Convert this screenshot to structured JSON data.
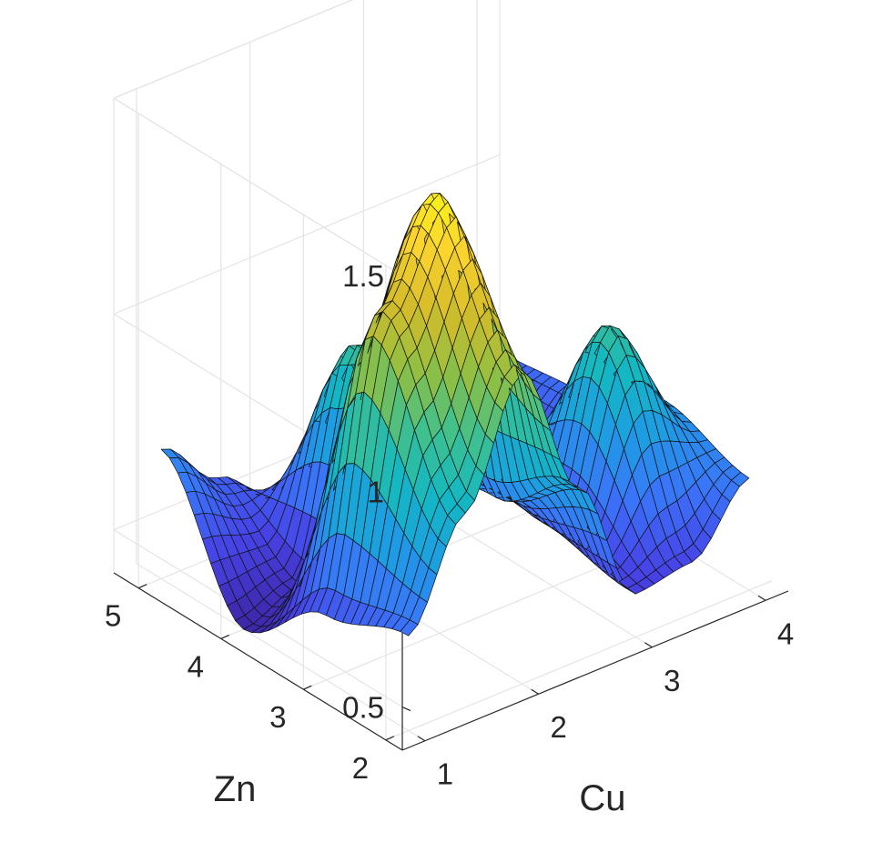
{
  "chart_data": {
    "type": "surface",
    "title": "",
    "xlabel": "Cu",
    "ylabel": "Zn",
    "zlabel": "",
    "xlim": [
      0.8,
      4.2
    ],
    "ylim": [
      1.8,
      5.3
    ],
    "zlim": [
      0.4,
      1.5
    ],
    "x_ticks": [
      "1",
      "2",
      "3",
      "4"
    ],
    "y_ticks": [
      "2",
      "3",
      "4",
      "5"
    ],
    "z_ticks": [
      "0.5",
      "1",
      "1.5"
    ],
    "grid": true,
    "colormap": [
      "#3e26a8",
      "#4743e6",
      "#3a74f9",
      "#1e9ce4",
      "#13b7c3",
      "#3ec08f",
      "#8fbf43",
      "#d5bc2a",
      "#fcd42e",
      "#f9fb15"
    ],
    "grid_rows_y": [
      2.0,
      3.0,
      4.0,
      5.0
    ],
    "grid_cols_x": [
      1.0,
      1.5,
      2.0,
      2.5,
      3.0,
      3.5,
      4.0
    ],
    "z_values": [
      [
        0.62,
        0.85,
        1.12,
        0.8,
        0.5,
        0.52,
        0.66
      ],
      [
        0.55,
        1.2,
        1.42,
        0.66,
        0.55,
        0.95,
        0.72
      ],
      [
        0.4,
        0.45,
        0.95,
        0.62,
        0.72,
        0.5,
        0.62
      ],
      [
        0.7,
        0.58,
        0.48,
        0.5,
        0.55,
        0.52,
        0.6
      ]
    ]
  }
}
